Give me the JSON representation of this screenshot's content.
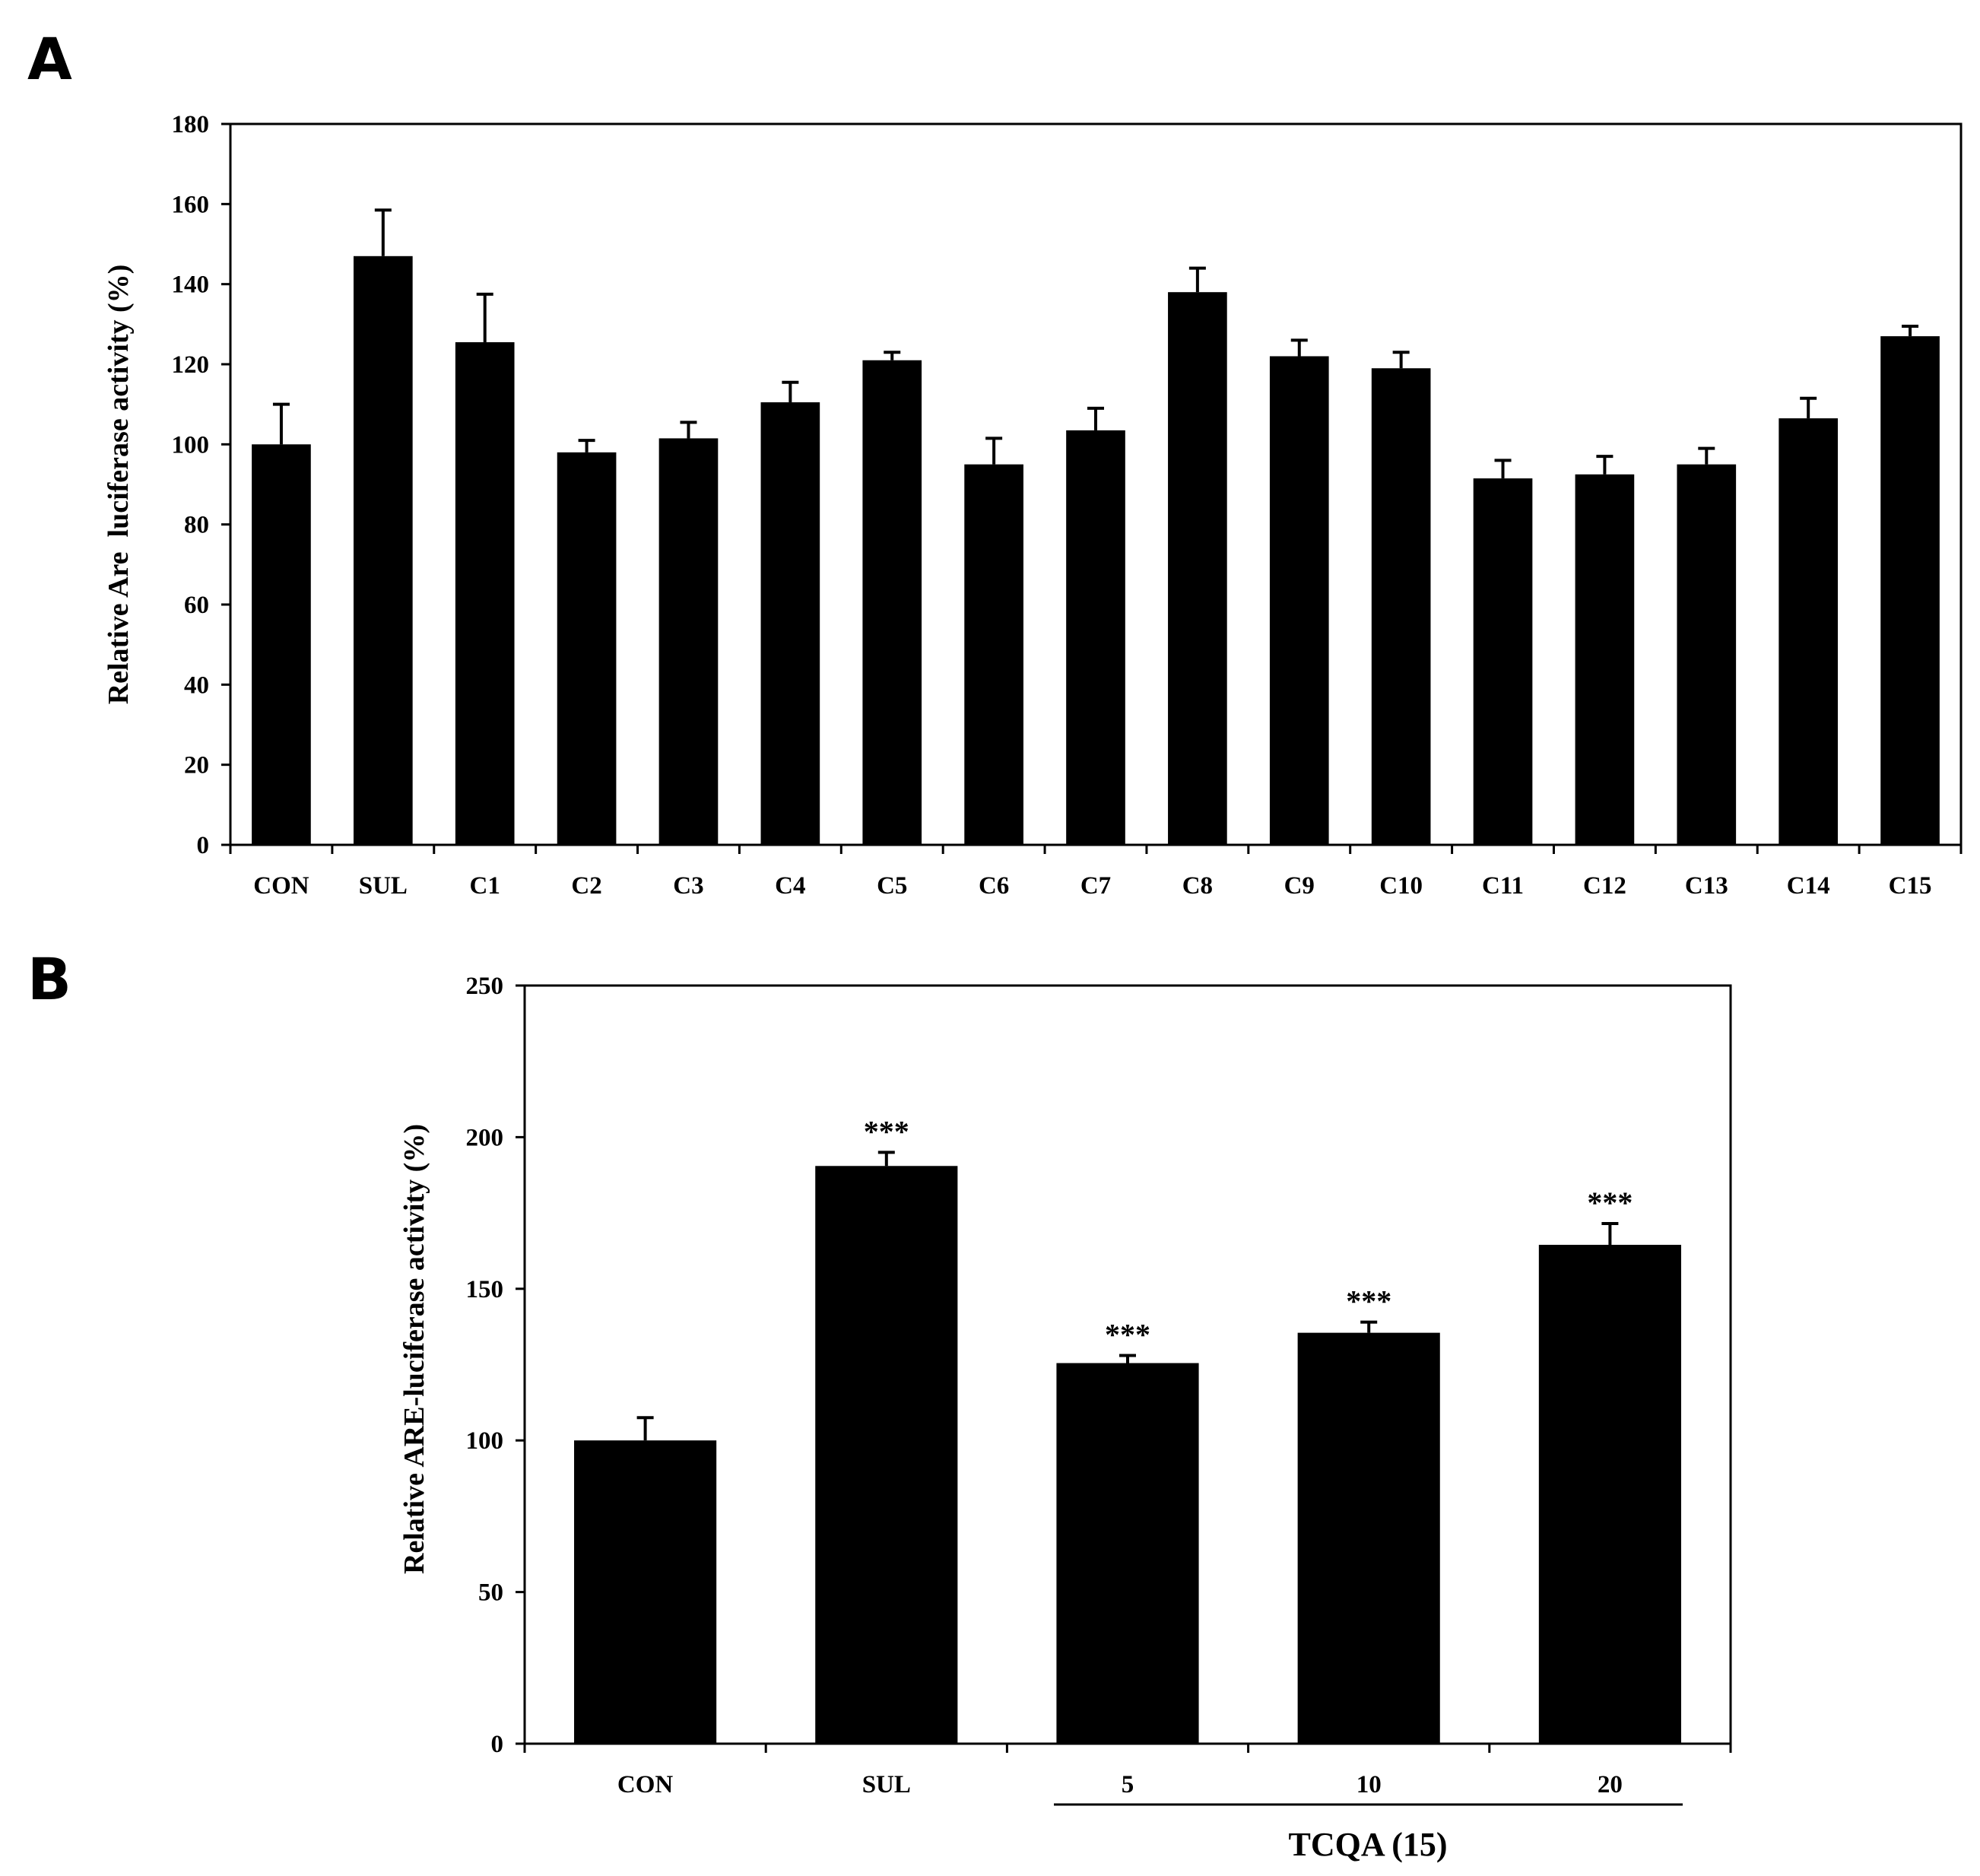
{
  "chart_data": [
    {
      "panel": "A",
      "type": "bar",
      "ylabel": "Relative Are  luciferase activity (%)",
      "xlabel": "",
      "ylim": [
        0,
        180
      ],
      "yticks": [
        0,
        20,
        40,
        60,
        80,
        100,
        120,
        140,
        160,
        180
      ],
      "categories": [
        "CON",
        "SUL",
        "C1",
        "C2",
        "C3",
        "C4",
        "C5",
        "C6",
        "C7",
        "C8",
        "C9",
        "C10",
        "C11",
        "C12",
        "C13",
        "C14",
        "C15"
      ],
      "values": [
        100,
        147,
        125.5,
        98,
        101.5,
        110.5,
        121,
        95,
        103.5,
        138,
        122,
        119,
        91.5,
        92.5,
        95,
        106.5,
        127
      ],
      "errors": [
        10,
        11.5,
        12,
        3,
        4,
        5,
        2,
        6.5,
        5.5,
        6,
        4,
        4,
        4.5,
        4.5,
        4,
        5,
        2.5
      ],
      "color": "#000000"
    },
    {
      "panel": "B",
      "type": "bar",
      "ylabel": "Relative ARE-luciferase activity (%)",
      "xlabel": "",
      "ylim": [
        0,
        250
      ],
      "yticks": [
        0,
        50,
        100,
        150,
        200,
        250
      ],
      "categories": [
        "CON",
        "SUL",
        "5",
        "10",
        "20"
      ],
      "values": [
        100,
        190.5,
        125.5,
        135.5,
        164.5
      ],
      "errors": [
        7.5,
        4.5,
        2.5,
        3.5,
        7
      ],
      "significance": [
        "",
        "***",
        "***",
        "***",
        "***"
      ],
      "group_label": "TCQA (15)",
      "group_span": [
        "5",
        "20"
      ],
      "color": "#000000"
    }
  ]
}
